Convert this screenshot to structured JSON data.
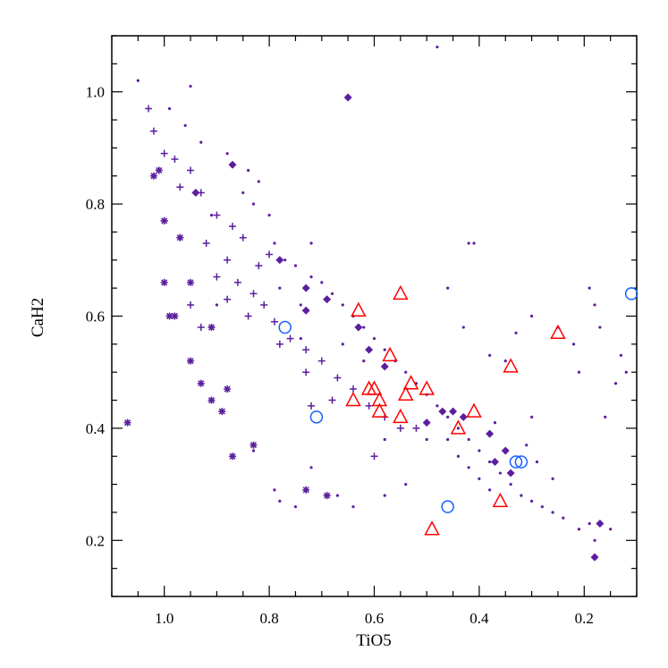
{
  "chart_data": {
    "type": "scatter",
    "title": "",
    "xlabel": "TiO5",
    "ylabel": "CaH2",
    "xlim": [
      1.1,
      0.1
    ],
    "ylim": [
      0.1,
      1.1
    ],
    "x_reversed": true,
    "xticks": [
      "1.0",
      "0.8",
      "0.6",
      "0.4",
      "0.2"
    ],
    "yticks": [
      "0.2",
      "0.4",
      "0.6",
      "0.8",
      "1.0"
    ],
    "colors": {
      "purple": "#5b1f9e",
      "red": "#ff0000",
      "blue": "#1560ff"
    },
    "series": [
      {
        "name": "dots",
        "marker": "dot",
        "color": "#5b1f9e",
        "points": [
          [
            1.05,
            1.02
          ],
          [
            0.95,
            1.01
          ],
          [
            0.88,
            0.89
          ],
          [
            0.84,
            0.86
          ],
          [
            0.82,
            0.84
          ],
          [
            0.96,
            0.94
          ],
          [
            0.93,
            0.91
          ],
          [
            0.99,
            0.97
          ],
          [
            0.8,
            0.78
          ],
          [
            0.79,
            0.73
          ],
          [
            0.77,
            0.7
          ],
          [
            0.75,
            0.69
          ],
          [
            0.72,
            0.67
          ],
          [
            0.7,
            0.66
          ],
          [
            0.68,
            0.64
          ],
          [
            0.66,
            0.62
          ],
          [
            0.64,
            0.6
          ],
          [
            0.62,
            0.58
          ],
          [
            0.6,
            0.56
          ],
          [
            0.58,
            0.54
          ],
          [
            0.56,
            0.52
          ],
          [
            0.54,
            0.5
          ],
          [
            0.52,
            0.48
          ],
          [
            0.5,
            0.46
          ],
          [
            0.48,
            0.44
          ],
          [
            0.46,
            0.42
          ],
          [
            0.44,
            0.4
          ],
          [
            0.42,
            0.38
          ],
          [
            0.4,
            0.36
          ],
          [
            0.38,
            0.34
          ],
          [
            0.36,
            0.32
          ],
          [
            0.34,
            0.3
          ],
          [
            0.32,
            0.28
          ],
          [
            0.3,
            0.27
          ],
          [
            0.28,
            0.26
          ],
          [
            0.26,
            0.25
          ],
          [
            0.24,
            0.24
          ],
          [
            0.78,
            0.65
          ],
          [
            0.74,
            0.62
          ],
          [
            0.72,
            0.73
          ],
          [
            0.48,
            1.08
          ],
          [
            0.42,
            0.73
          ],
          [
            0.41,
            0.73
          ],
          [
            0.46,
            0.65
          ],
          [
            0.43,
            0.58
          ],
          [
            0.38,
            0.53
          ],
          [
            0.35,
            0.52
          ],
          [
            0.33,
            0.57
          ],
          [
            0.3,
            0.6
          ],
          [
            0.25,
            0.58
          ],
          [
            0.22,
            0.55
          ],
          [
            0.19,
            0.65
          ],
          [
            0.18,
            0.62
          ],
          [
            0.17,
            0.58
          ],
          [
            0.14,
            0.48
          ],
          [
            0.13,
            0.53
          ],
          [
            0.12,
            0.5
          ],
          [
            0.15,
            0.22
          ],
          [
            0.19,
            0.23
          ],
          [
            0.21,
            0.22
          ],
          [
            0.26,
            0.31
          ],
          [
            0.29,
            0.34
          ],
          [
            0.31,
            0.37
          ],
          [
            0.83,
            0.36
          ],
          [
            0.78,
            0.27
          ],
          [
            0.75,
            0.26
          ],
          [
            0.72,
            0.33
          ],
          [
            0.66,
            0.55
          ],
          [
            0.62,
            0.52
          ],
          [
            0.67,
            0.28
          ],
          [
            0.64,
            0.26
          ],
          [
            0.58,
            0.28
          ],
          [
            0.54,
            0.3
          ],
          [
            0.46,
            0.38
          ],
          [
            0.44,
            0.35
          ],
          [
            0.42,
            0.33
          ],
          [
            0.4,
            0.31
          ],
          [
            0.38,
            0.29
          ],
          [
            0.74,
            0.56
          ],
          [
            0.58,
            0.38
          ],
          [
            0.5,
            0.38
          ],
          [
            0.37,
            0.41
          ],
          [
            0.3,
            0.42
          ],
          [
            0.21,
            0.5
          ],
          [
            0.16,
            0.42
          ],
          [
            0.9,
            0.62
          ],
          [
            0.87,
            0.35
          ],
          [
            0.79,
            0.29
          ],
          [
            0.18,
            0.2
          ],
          [
            0.91,
            0.78
          ],
          [
            0.85,
            0.82
          ],
          [
            0.83,
            0.8
          ]
        ]
      },
      {
        "name": "plus",
        "marker": "plus",
        "color": "#5b1f9e",
        "points": [
          [
            1.03,
            0.97
          ],
          [
            1.02,
            0.93
          ],
          [
            1.0,
            0.89
          ],
          [
            0.98,
            0.88
          ],
          [
            0.95,
            0.86
          ],
          [
            0.97,
            0.83
          ],
          [
            0.93,
            0.82
          ],
          [
            0.9,
            0.78
          ],
          [
            0.87,
            0.76
          ],
          [
            0.85,
            0.74
          ],
          [
            0.92,
            0.73
          ],
          [
            0.88,
            0.7
          ],
          [
            0.82,
            0.69
          ],
          [
            0.86,
            0.66
          ],
          [
            0.83,
            0.64
          ],
          [
            0.81,
            0.62
          ],
          [
            0.79,
            0.59
          ],
          [
            0.76,
            0.56
          ],
          [
            0.73,
            0.54
          ],
          [
            0.7,
            0.52
          ],
          [
            0.67,
            0.49
          ],
          [
            0.64,
            0.47
          ],
          [
            0.61,
            0.44
          ],
          [
            0.58,
            0.42
          ],
          [
            0.55,
            0.4
          ],
          [
            0.9,
            0.67
          ],
          [
            0.88,
            0.63
          ],
          [
            0.84,
            0.6
          ],
          [
            0.93,
            0.58
          ],
          [
            0.78,
            0.55
          ],
          [
            0.73,
            0.5
          ],
          [
            0.68,
            0.45
          ],
          [
            0.72,
            0.44
          ],
          [
            0.6,
            0.35
          ],
          [
            0.52,
            0.4
          ],
          [
            1.0,
            0.77
          ],
          [
            0.97,
            0.74
          ],
          [
            0.8,
            0.71
          ],
          [
            0.95,
            0.62
          ]
        ]
      },
      {
        "name": "asterisk",
        "marker": "asterisk",
        "color": "#5b1f9e",
        "points": [
          [
            1.07,
            0.41
          ],
          [
            1.01,
            0.86
          ],
          [
            1.02,
            0.85
          ],
          [
            1.0,
            0.77
          ],
          [
            0.97,
            0.74
          ],
          [
            0.95,
            0.66
          ],
          [
            0.98,
            0.6
          ],
          [
            0.91,
            0.58
          ],
          [
            0.95,
            0.52
          ],
          [
            0.93,
            0.48
          ],
          [
            0.91,
            0.45
          ],
          [
            0.88,
            0.47
          ],
          [
            0.89,
            0.43
          ],
          [
            0.83,
            0.37
          ],
          [
            0.87,
            0.35
          ],
          [
            0.73,
            0.29
          ],
          [
            0.69,
            0.28
          ],
          [
            1.0,
            0.66
          ],
          [
            0.99,
            0.6
          ]
        ]
      },
      {
        "name": "diamond",
        "marker": "diamond",
        "color": "#5b1f9e",
        "points": [
          [
            0.65,
            0.99
          ],
          [
            0.87,
            0.87
          ],
          [
            0.94,
            0.82
          ],
          [
            0.78,
            0.7
          ],
          [
            0.73,
            0.65
          ],
          [
            0.69,
            0.63
          ],
          [
            0.73,
            0.61
          ],
          [
            0.63,
            0.58
          ],
          [
            0.61,
            0.54
          ],
          [
            0.58,
            0.51
          ],
          [
            0.45,
            0.43
          ],
          [
            0.47,
            0.43
          ],
          [
            0.5,
            0.41
          ],
          [
            0.43,
            0.42
          ],
          [
            0.38,
            0.39
          ],
          [
            0.35,
            0.36
          ],
          [
            0.37,
            0.34
          ],
          [
            0.34,
            0.32
          ],
          [
            0.17,
            0.23
          ],
          [
            0.18,
            0.17
          ]
        ]
      },
      {
        "name": "triangle",
        "marker": "triangle",
        "color": "#ff0000",
        "points": [
          [
            0.55,
            0.64
          ],
          [
            0.63,
            0.61
          ],
          [
            0.57,
            0.53
          ],
          [
            0.53,
            0.48
          ],
          [
            0.54,
            0.46
          ],
          [
            0.5,
            0.47
          ],
          [
            0.6,
            0.47
          ],
          [
            0.61,
            0.47
          ],
          [
            0.59,
            0.45
          ],
          [
            0.64,
            0.45
          ],
          [
            0.59,
            0.43
          ],
          [
            0.55,
            0.42
          ],
          [
            0.44,
            0.4
          ],
          [
            0.41,
            0.43
          ],
          [
            0.34,
            0.51
          ],
          [
            0.25,
            0.57
          ],
          [
            0.36,
            0.27
          ],
          [
            0.49,
            0.22
          ]
        ]
      },
      {
        "name": "circle",
        "marker": "circle",
        "color": "#1560ff",
        "points": [
          [
            0.77,
            0.58
          ],
          [
            0.71,
            0.42
          ],
          [
            0.46,
            0.26
          ],
          [
            0.33,
            0.34
          ],
          [
            0.32,
            0.34
          ],
          [
            0.11,
            0.64
          ]
        ]
      }
    ]
  }
}
